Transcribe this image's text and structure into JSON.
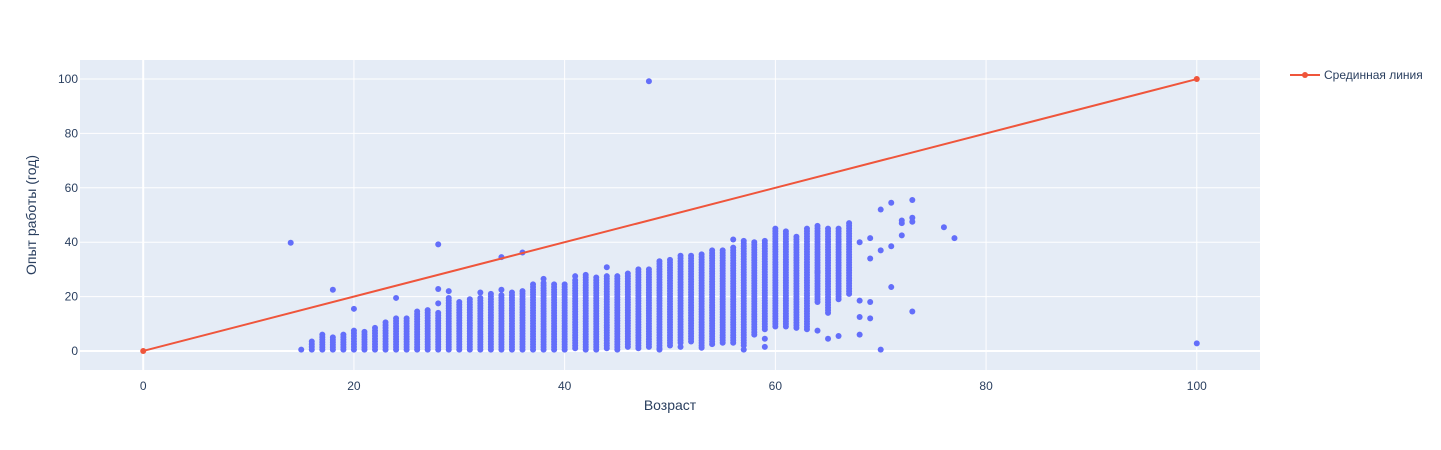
{
  "chart_data": {
    "type": "scatter",
    "title": "",
    "xlabel": "Возраст",
    "ylabel": "Опыт работы (год)",
    "xlim": [
      -6,
      106
    ],
    "ylim": [
      -7,
      107
    ],
    "xticks": [
      0,
      20,
      40,
      60,
      80,
      100
    ],
    "yticks": [
      0,
      20,
      40,
      60,
      80,
      100
    ],
    "grid": true,
    "legend_position": "top-right",
    "colors": {
      "plot_bg": "#E5ECF6",
      "grid": "#ffffff",
      "scatter": "#636EFA",
      "line": "#EF553B",
      "text": "#2a3f5f"
    },
    "series": [
      {
        "kind": "scatter",
        "columns": [
          {
            "x": 14,
            "ranges": [],
            "singles": [
              39.8
            ]
          },
          {
            "x": 15,
            "ranges": [],
            "singles": [
              0.5
            ]
          },
          {
            "x": 16,
            "ranges": [
              [
                0.5,
                3.5
              ]
            ],
            "singles": []
          },
          {
            "x": 17,
            "ranges": [
              [
                0.5,
                6
              ]
            ],
            "singles": []
          },
          {
            "x": 18,
            "ranges": [
              [
                0.5,
                5
              ]
            ],
            "singles": [
              22.5
            ]
          },
          {
            "x": 19,
            "ranges": [
              [
                0.5,
                6
              ]
            ],
            "singles": []
          },
          {
            "x": 20,
            "ranges": [
              [
                0.5,
                7.5
              ]
            ],
            "singles": [
              15.5
            ]
          },
          {
            "x": 21,
            "ranges": [
              [
                0.5,
                7
              ]
            ],
            "singles": []
          },
          {
            "x": 22,
            "ranges": [
              [
                0.5,
                8.5
              ]
            ],
            "singles": []
          },
          {
            "x": 23,
            "ranges": [
              [
                0.5,
                10.5
              ]
            ],
            "singles": []
          },
          {
            "x": 24,
            "ranges": [
              [
                0.5,
                12
              ]
            ],
            "singles": [
              19.5
            ]
          },
          {
            "x": 25,
            "ranges": [
              [
                0.5,
                12
              ]
            ],
            "singles": []
          },
          {
            "x": 26,
            "ranges": [
              [
                0.5,
                14.5
              ]
            ],
            "singles": []
          },
          {
            "x": 27,
            "ranges": [
              [
                0.5,
                15
              ]
            ],
            "singles": []
          },
          {
            "x": 28,
            "ranges": [
              [
                0.5,
                14
              ]
            ],
            "singles": [
              17.5,
              22.8,
              39.2
            ]
          },
          {
            "x": 29,
            "ranges": [
              [
                0.5,
                19.5
              ]
            ],
            "singles": [
              22
            ]
          },
          {
            "x": 30,
            "ranges": [
              [
                0.5,
                18
              ]
            ],
            "singles": []
          },
          {
            "x": 31,
            "ranges": [
              [
                0.5,
                19
              ]
            ],
            "singles": []
          },
          {
            "x": 32,
            "ranges": [
              [
                0.5,
                19.5
              ]
            ],
            "singles": [
              21.5
            ]
          },
          {
            "x": 33,
            "ranges": [
              [
                0.5,
                21
              ]
            ],
            "singles": []
          },
          {
            "x": 34,
            "ranges": [
              [
                0.5,
                20.5
              ]
            ],
            "singles": [
              22.5,
              34.5
            ]
          },
          {
            "x": 35,
            "ranges": [
              [
                0.5,
                21.5
              ]
            ],
            "singles": []
          },
          {
            "x": 36,
            "ranges": [
              [
                0.5,
                22
              ]
            ],
            "singles": [
              36.2
            ]
          },
          {
            "x": 37,
            "ranges": [
              [
                0.5,
                24.5
              ]
            ],
            "singles": []
          },
          {
            "x": 38,
            "ranges": [
              [
                0.5,
                25
              ]
            ],
            "singles": [
              26.5
            ]
          },
          {
            "x": 39,
            "ranges": [
              [
                0.5,
                24.5
              ]
            ],
            "singles": []
          },
          {
            "x": 40,
            "ranges": [
              [
                0.5,
                24.5
              ]
            ],
            "singles": []
          },
          {
            "x": 41,
            "ranges": [
              [
                1,
                26
              ]
            ],
            "singles": [
              27.5
            ]
          },
          {
            "x": 42,
            "ranges": [
              [
                0.5,
                28
              ]
            ],
            "singles": []
          },
          {
            "x": 43,
            "ranges": [
              [
                0.5,
                27
              ]
            ],
            "singles": []
          },
          {
            "x": 44,
            "ranges": [
              [
                1,
                27.5
              ]
            ],
            "singles": [
              30.8
            ]
          },
          {
            "x": 45,
            "ranges": [
              [
                0.5,
                27.5
              ]
            ],
            "singles": []
          },
          {
            "x": 46,
            "ranges": [
              [
                1.5,
                28.5
              ]
            ],
            "singles": []
          },
          {
            "x": 47,
            "ranges": [
              [
                1,
                30
              ]
            ],
            "singles": []
          },
          {
            "x": 48,
            "ranges": [
              [
                1.5,
                30
              ]
            ],
            "singles": [
              99.2
            ]
          },
          {
            "x": 49,
            "ranges": [
              [
                1,
                33
              ]
            ],
            "singles": [
              0.5
            ]
          },
          {
            "x": 50,
            "ranges": [
              [
                2,
                33.5
              ]
            ],
            "singles": []
          },
          {
            "x": 51,
            "ranges": [
              [
                3,
                35
              ]
            ],
            "singles": [
              1.5
            ]
          },
          {
            "x": 52,
            "ranges": [
              [
                3.5,
                35
              ]
            ],
            "singles": []
          },
          {
            "x": 53,
            "ranges": [
              [
                2,
                35.5
              ]
            ],
            "singles": [
              1.2
            ]
          },
          {
            "x": 54,
            "ranges": [
              [
                2.5,
                37
              ]
            ],
            "singles": []
          },
          {
            "x": 55,
            "ranges": [
              [
                3,
                37
              ]
            ],
            "singles": []
          },
          {
            "x": 56,
            "ranges": [
              [
                3,
                38
              ]
            ],
            "singles": [
              41
            ]
          },
          {
            "x": 57,
            "ranges": [
              [
                2,
                40.5
              ]
            ],
            "singles": [
              0.5
            ]
          },
          {
            "x": 58,
            "ranges": [
              [
                6,
                40
              ]
            ],
            "singles": []
          },
          {
            "x": 59,
            "ranges": [
              [
                8,
                40.5
              ]
            ],
            "singles": [
              1.5,
              4.5
            ]
          },
          {
            "x": 60,
            "ranges": [
              [
                9,
                45
              ]
            ],
            "singles": []
          },
          {
            "x": 61,
            "ranges": [
              [
                9,
                44
              ]
            ],
            "singles": []
          },
          {
            "x": 62,
            "ranges": [
              [
                8.5,
                42
              ]
            ],
            "singles": []
          },
          {
            "x": 63,
            "ranges": [
              [
                8,
                45
              ]
            ],
            "singles": []
          },
          {
            "x": 64,
            "ranges": [
              [
                18,
                46
              ]
            ],
            "singles": [
              7.5,
              29
            ]
          },
          {
            "x": 65,
            "ranges": [
              [
                14,
                45
              ]
            ],
            "singles": [
              4.5
            ]
          },
          {
            "x": 66,
            "ranges": [
              [
                19,
                45
              ]
            ],
            "singles": [
              5.5
            ]
          },
          {
            "x": 67,
            "ranges": [
              [
                21,
                47
              ]
            ],
            "singles": []
          },
          {
            "x": 68,
            "ranges": [],
            "singles": [
              6,
              12.5,
              18.5,
              40
            ]
          },
          {
            "x": 69,
            "ranges": [],
            "singles": [
              12,
              18,
              34,
              41.5
            ]
          },
          {
            "x": 70,
            "ranges": [],
            "singles": [
              0.5,
              37,
              52
            ]
          },
          {
            "x": 71,
            "ranges": [],
            "singles": [
              23.5,
              38.5,
              54.5
            ]
          },
          {
            "x": 72,
            "ranges": [],
            "singles": [
              42.5,
              47,
              48
            ]
          },
          {
            "x": 73,
            "ranges": [],
            "singles": [
              14.5,
              47.5,
              49,
              55.5
            ]
          },
          {
            "x": 76,
            "ranges": [],
            "singles": [
              45.5
            ]
          },
          {
            "x": 77,
            "ranges": [],
            "singles": [
              41.5
            ]
          },
          {
            "x": 100,
            "ranges": [],
            "singles": [
              2.8
            ]
          }
        ]
      },
      {
        "kind": "line",
        "name": "Срединная линия",
        "x": [
          0,
          100
        ],
        "y": [
          0,
          100
        ]
      }
    ]
  }
}
